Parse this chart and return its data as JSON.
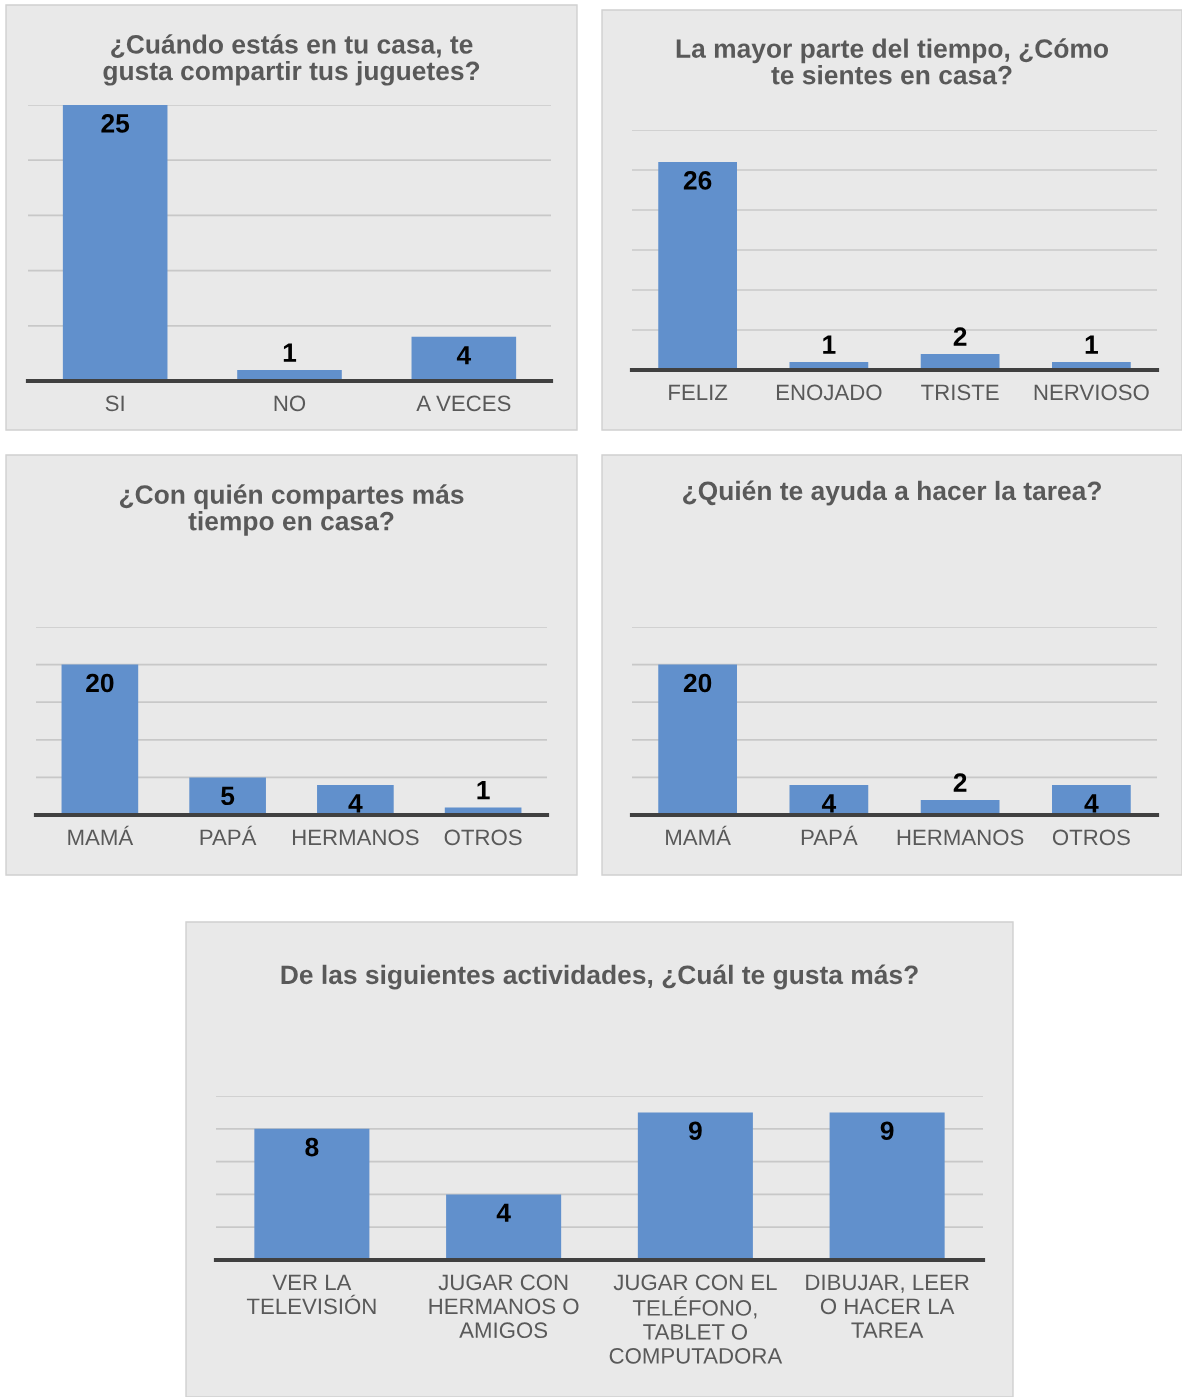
{
  "chart_data": [
    {
      "type": "bar",
      "title": "¿Cuándo estás en tu casa, te gusta compartir tus juguetes?",
      "categories": [
        "SI",
        "NO",
        "A VECES"
      ],
      "values": [
        25,
        1,
        4
      ],
      "color": "#6190cc",
      "data_labels": true,
      "ylim": [
        0,
        25
      ],
      "yticks": [
        {
          "value": 0,
          "label": null
        },
        {
          "value": 5,
          "label": null
        },
        {
          "value": 10,
          "label": null
        },
        {
          "value": 15,
          "label": null
        },
        {
          "value": 20,
          "label": null
        },
        {
          "value": 25,
          "label": null
        }
      ],
      "grid": "y",
      "tick_labels": "x"
    },
    {
      "type": "bar",
      "title": "La mayor parte del tiempo, ¿Cómo te sientes en casa?",
      "categories": [
        "FELIZ",
        "ENOJADO",
        "TRISTE",
        "NERVIOSO"
      ],
      "values": [
        26,
        1,
        2,
        1
      ],
      "color": "#6190cc",
      "data_labels": true,
      "ylim": [
        0,
        30
      ],
      "yticks": [
        {
          "value": 0,
          "label": null
        },
        {
          "value": 5,
          "label": null
        },
        {
          "value": 10,
          "label": null
        },
        {
          "value": 15,
          "label": null
        },
        {
          "value": 20,
          "label": null
        },
        {
          "value": 25,
          "label": null
        },
        {
          "value": 30,
          "label": null
        }
      ],
      "grid": "y",
      "tick_labels": "x"
    },
    {
      "type": "bar",
      "title": "¿Con quién compartes más tiempo en casa?",
      "categories": [
        "MAMÁ",
        "PAPÁ",
        "HERMANOS",
        "OTROS"
      ],
      "values": [
        20,
        5,
        4,
        1
      ],
      "color": "#6190cc",
      "data_labels": true,
      "ylim": [
        0,
        25
      ],
      "yticks": [
        {
          "value": 0,
          "label": null
        },
        {
          "value": 5,
          "label": null
        },
        {
          "value": 10,
          "label": null
        },
        {
          "value": 15,
          "label": null
        },
        {
          "value": 20,
          "label": null
        },
        {
          "value": 25,
          "label": null
        }
      ],
      "grid": "y",
      "tick_labels": "x"
    },
    {
      "type": "bar",
      "title": "¿Quién te ayuda a hacer la tarea?",
      "categories": [
        "MAMÁ",
        "PAPÁ",
        "HERMANOS",
        "OTROS"
      ],
      "values": [
        20,
        4,
        2,
        4
      ],
      "color": "#6190cc",
      "data_labels": true,
      "ylim": [
        0,
        25
      ],
      "yticks": [
        {
          "value": 0,
          "label": null
        },
        {
          "value": 5,
          "label": null
        },
        {
          "value": 10,
          "label": null
        },
        {
          "value": 15,
          "label": null
        },
        {
          "value": 20,
          "label": null
        },
        {
          "value": 25,
          "label": null
        }
      ],
      "grid": "y",
      "tick_labels": "x"
    },
    {
      "type": "bar",
      "title": "De las siguientes actividades, ¿Cuál te gusta más?",
      "categories": [
        "VER LA TELEVISIÓN",
        "JUGAR CON HERMANOS O AMIGOS",
        "JUGAR CON EL TELÉFONO, TABLET O COMPUTADORA",
        "DIBUJAR, LEER O HACER LA TAREA"
      ],
      "values": [
        8,
        4,
        9,
        9
      ],
      "color": "#6190cc",
      "data_labels": true,
      "ylim": [
        0,
        10
      ],
      "yticks": [
        {
          "value": 0,
          "label": null
        },
        {
          "value": 2,
          "label": null
        },
        {
          "value": 4,
          "label": null
        },
        {
          "value": 6,
          "label": null
        },
        {
          "value": 8,
          "label": null
        },
        {
          "value": 10,
          "label": null
        }
      ],
      "grid": "y",
      "tick_labels": "x"
    }
  ]
}
